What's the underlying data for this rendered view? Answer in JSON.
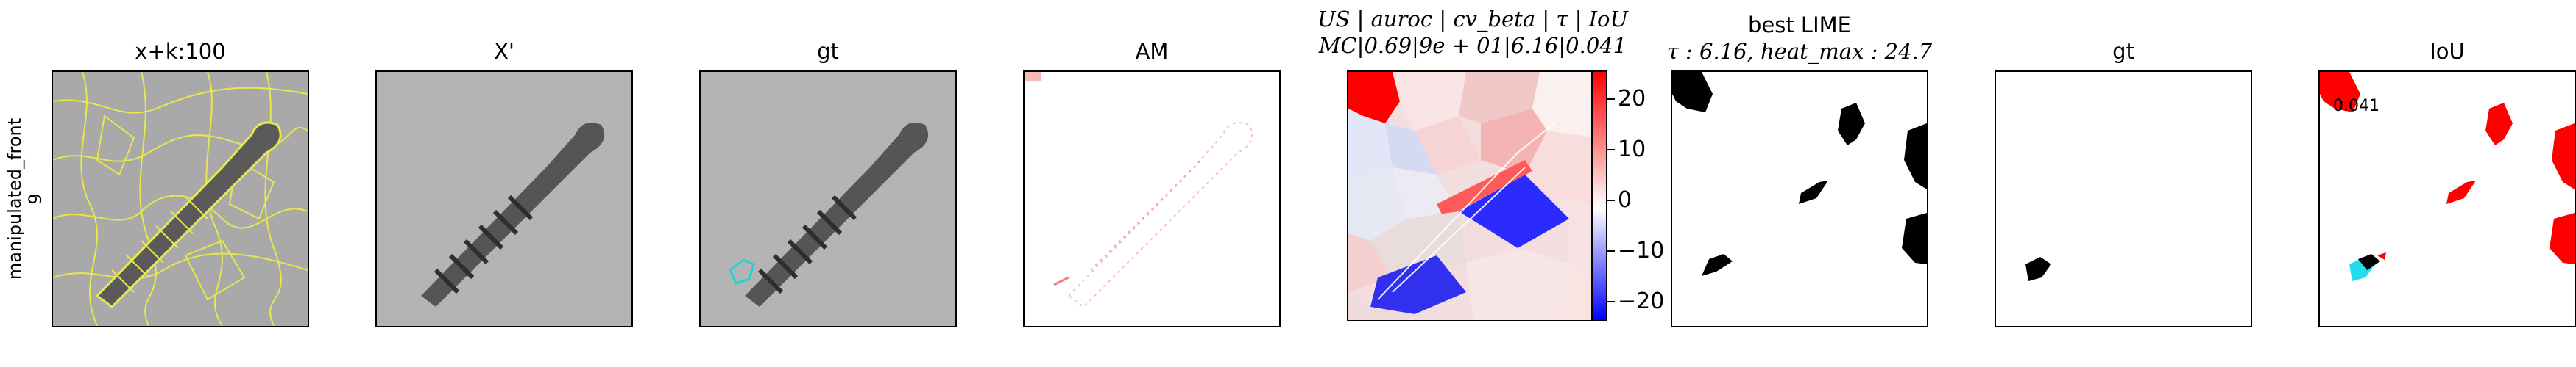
{
  "row_label": {
    "line1": "manipulated_front",
    "line2": "9"
  },
  "panels": [
    {
      "title": "x+k:100"
    },
    {
      "title": "X'"
    },
    {
      "title": "gt"
    },
    {
      "title": "AM"
    },
    {
      "title_line1": "US | auroc | cv_beta | τ | IoU",
      "title_line2": "MC|0.69|9e + 01|6.16|0.041"
    },
    {
      "title_line1": "best LIME",
      "title_line2": "τ : 6.16, heat_max : 24.7"
    },
    {
      "title": "gt"
    },
    {
      "title": "IoU"
    }
  ],
  "colorbar": {
    "ticks": [
      "20",
      "10",
      "0",
      "−10",
      "−20"
    ],
    "colors": {
      "high": "#ff0000",
      "mid": "#ffffff",
      "low": "#0000ff"
    }
  },
  "iou_value": "0.041",
  "colors": {
    "superpixel": "#e8e84a",
    "gt_outline": "#22d3d3",
    "iou_fp": "#ff0000",
    "iou_fn": "#22ddee"
  }
}
